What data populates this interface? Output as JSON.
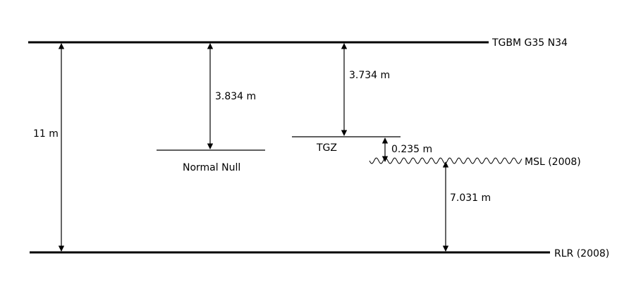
{
  "levels": {
    "tgbm": "TGBM G35 N34",
    "normal_null": "Normal Null",
    "tgz": "TGZ",
    "msl": "MSL (2008)",
    "rlr": "RLR (2008)"
  },
  "distances": {
    "tgbm_to_rlr": "11 m",
    "tgbm_to_normal_null": "3.834 m",
    "tgbm_to_tgz": "3.734 m",
    "tgz_to_msl": "0.235 m",
    "msl_to_rlr": "7.031 m"
  }
}
